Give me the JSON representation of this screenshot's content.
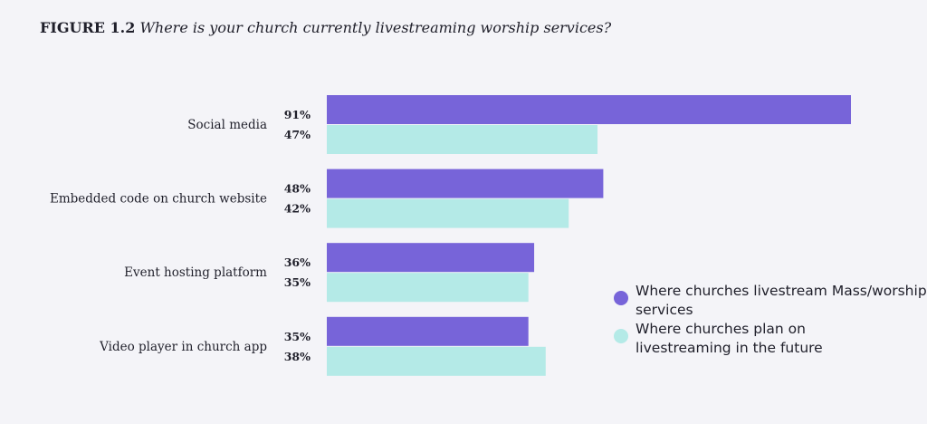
{
  "chart_data": {
    "type": "bar",
    "orientation": "horizontal",
    "title_prefix": "FIGURE 1.2",
    "title": "Where is your church currently livestreaming worship services?",
    "categories": [
      "Social media",
      "Embedded code on church website",
      "Event hosting platform",
      "Video player in church app"
    ],
    "series": [
      {
        "name": "Where churches livestream Mass/worship services",
        "values": [
          91,
          48,
          36,
          35
        ],
        "color": "#7764d9"
      },
      {
        "name": "Where churches plan on livestreaming in the future",
        "values": [
          47,
          42,
          35,
          38
        ],
        "color": "#b4eae7"
      }
    ],
    "value_suffix": "%",
    "xlim": [
      0,
      100
    ],
    "grid": false,
    "legend_position": "bottom-right"
  }
}
